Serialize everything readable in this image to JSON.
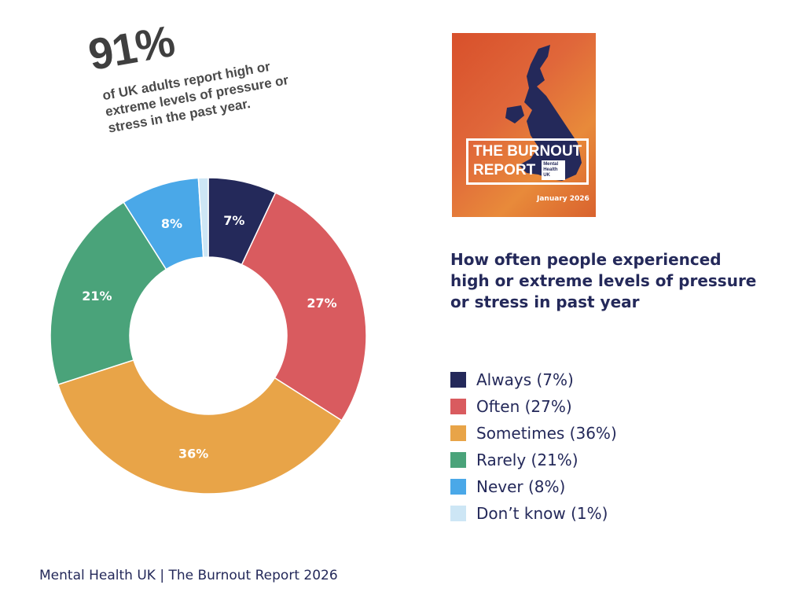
{
  "headline": {
    "stat": "91%",
    "text": "of UK adults report high or extreme levels of pressure or stress in the past year."
  },
  "cover": {
    "title_line1": "THE BURNOUT",
    "title_line2": "REPORT",
    "logo": "Mental Health UK",
    "date": "January 2026"
  },
  "footer": "Mental Health UK | The Burnout Report 2026",
  "chart_data": {
    "type": "pie",
    "donut": true,
    "title": "How often people experienced high or extreme levels of pressure or stress in past year",
    "legend_position": "right",
    "categories": [
      "Always",
      "Often",
      "Sometimes",
      "Rarely",
      "Never",
      "Don’t know"
    ],
    "values": [
      7,
      27,
      36,
      21,
      8,
      1
    ],
    "data_labels": [
      "7%",
      "27%",
      "36%",
      "21%",
      "8%",
      ""
    ],
    "legend_labels": [
      "Always (7%)",
      "Often (27%)",
      "Sometimes (36%)",
      "Rarely (21%)",
      "Never (8%)",
      "Don’t know (1%)"
    ],
    "colors": [
      "#24295a",
      "#d95b5f",
      "#e8a448",
      "#4aa37a",
      "#4aa8e8",
      "#cde6f5"
    ]
  }
}
